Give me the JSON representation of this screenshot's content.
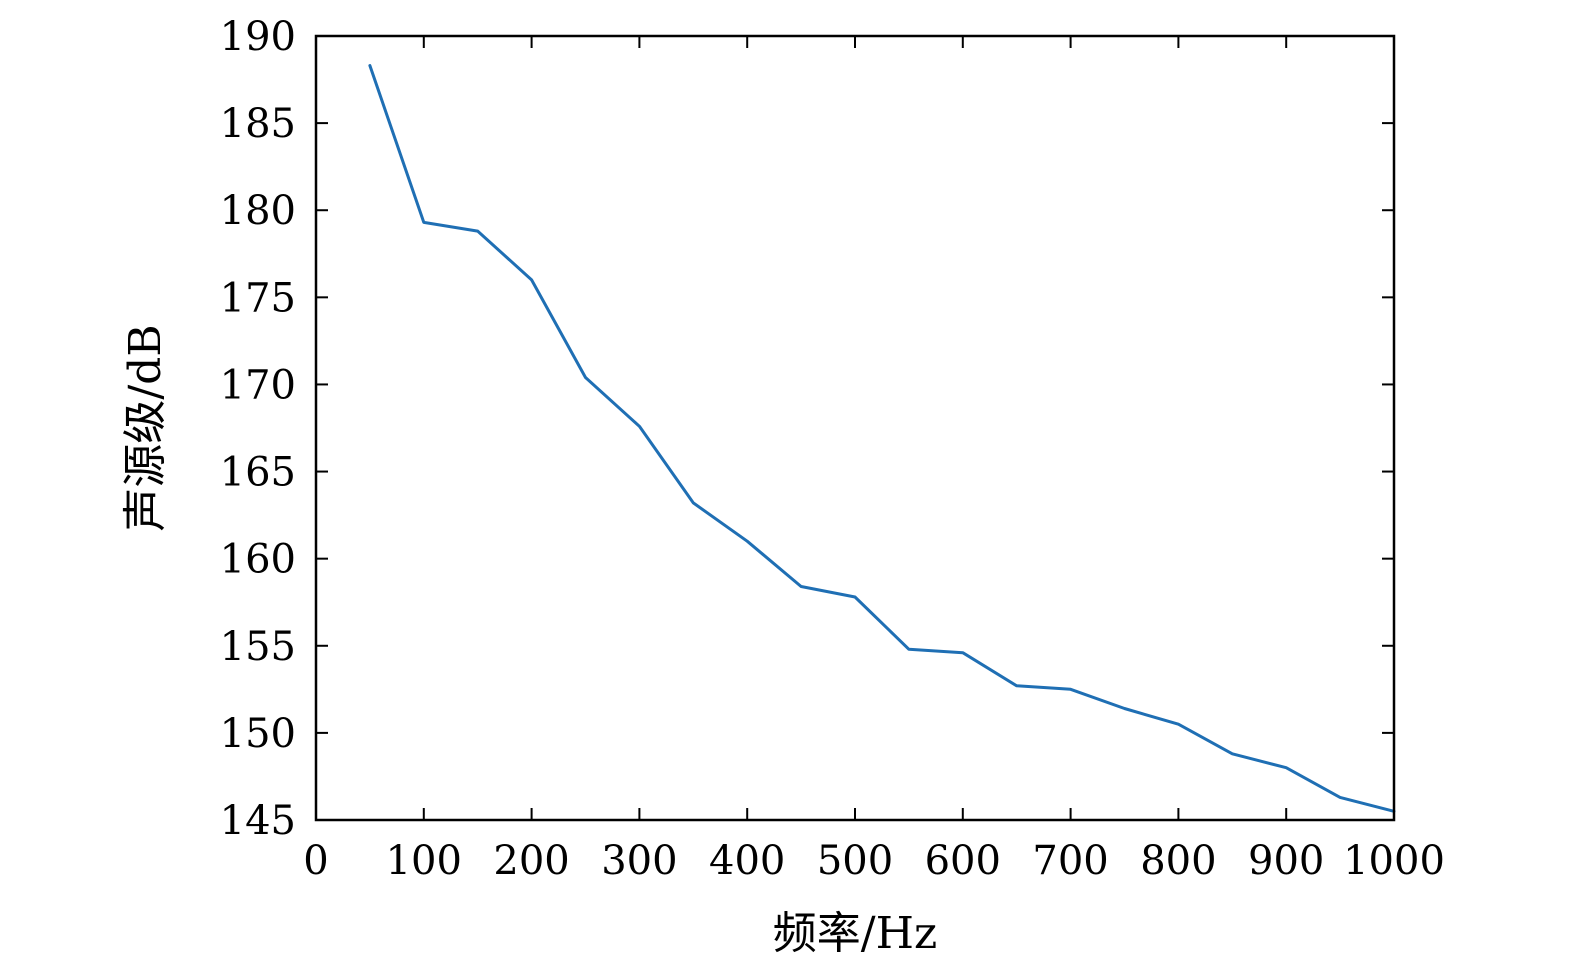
{
  "chart_data": {
    "type": "line",
    "title": "",
    "xlabel": "频率/Hz",
    "ylabel": "声源级/dB",
    "xlim": [
      0,
      1000
    ],
    "ylim": [
      145,
      190
    ],
    "xticks": [
      0,
      100,
      200,
      300,
      400,
      500,
      600,
      700,
      800,
      900,
      1000
    ],
    "yticks": [
      145,
      150,
      155,
      160,
      165,
      170,
      175,
      180,
      185,
      190
    ],
    "grid": false,
    "series": [
      {
        "color": "#1f6fb4",
        "x": [
          50,
          100,
          150,
          200,
          250,
          300,
          350,
          400,
          450,
          500,
          550,
          600,
          650,
          700,
          750,
          800,
          850,
          900,
          950,
          1000
        ],
        "y": [
          188.3,
          179.3,
          178.8,
          176.0,
          170.4,
          167.6,
          163.2,
          161.0,
          158.4,
          157.8,
          154.8,
          154.6,
          152.7,
          152.5,
          151.4,
          150.5,
          148.8,
          148.0,
          146.3,
          145.5
        ]
      }
    ]
  }
}
